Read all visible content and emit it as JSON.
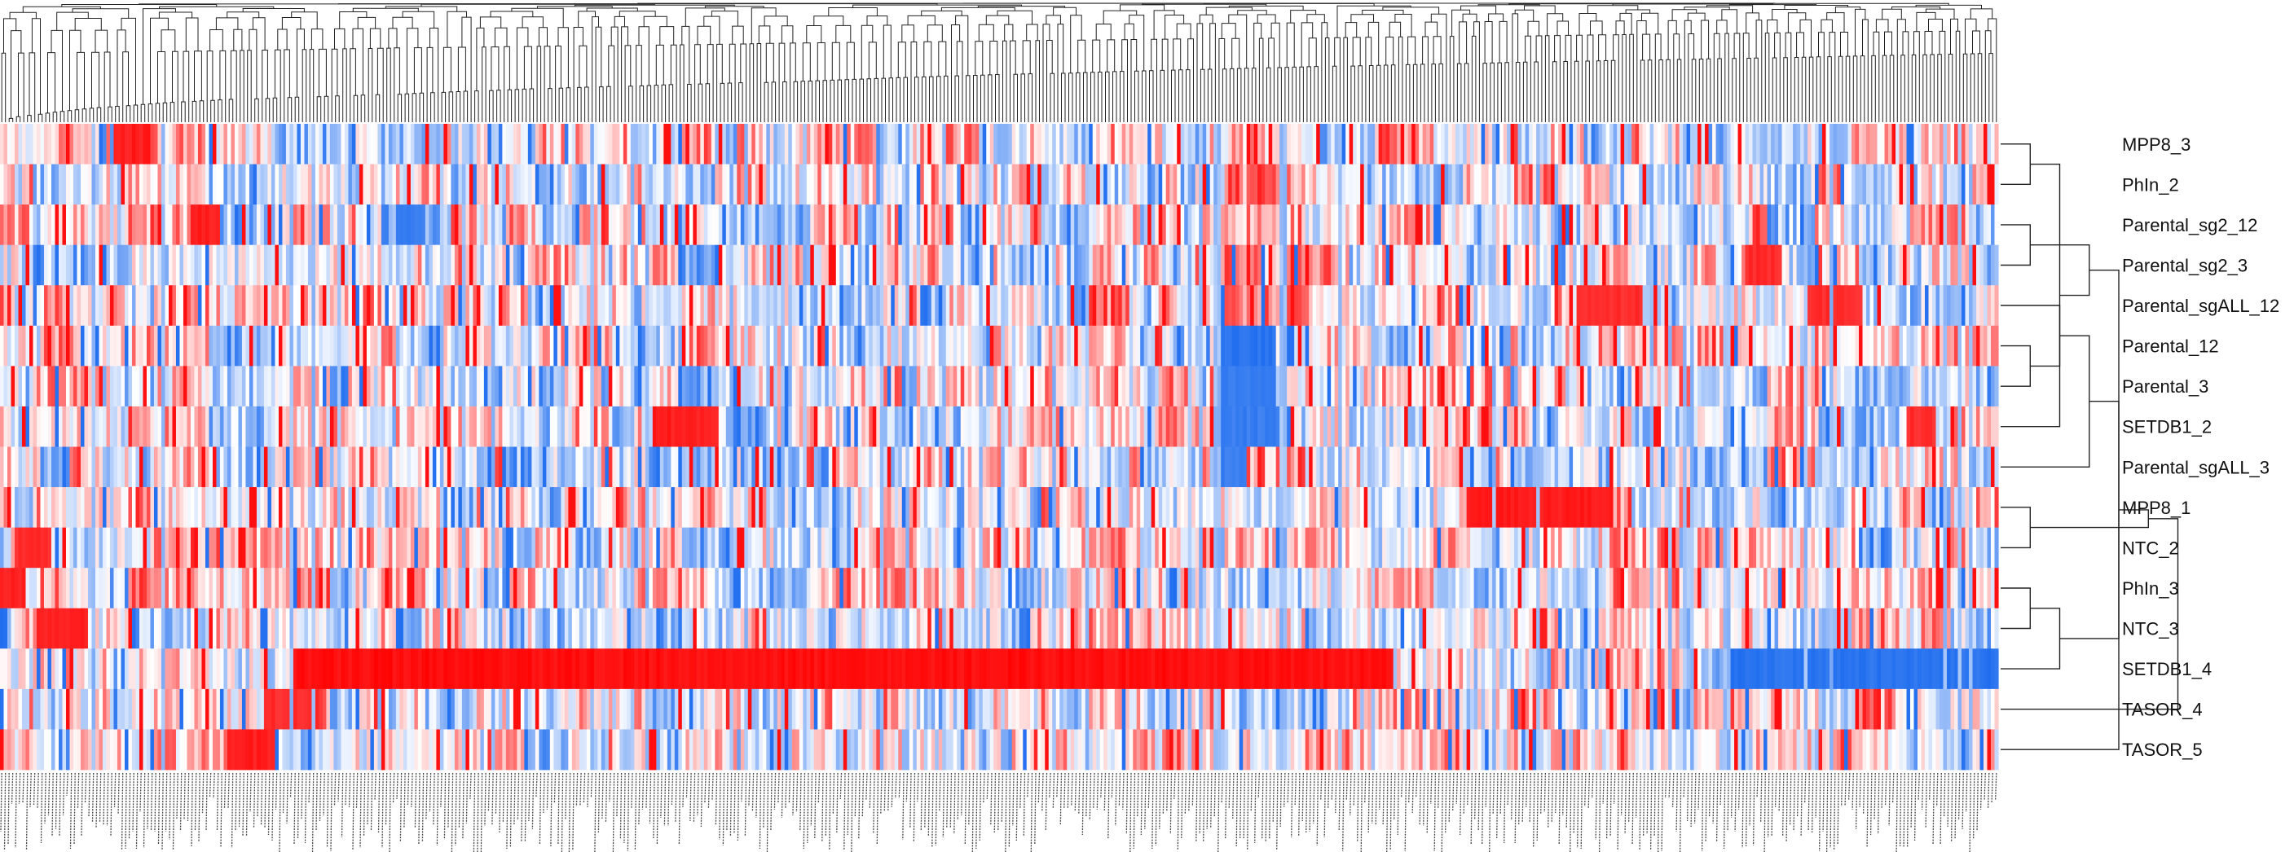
{
  "chart_data": {
    "type": "heatmap",
    "title": "",
    "xlabel": "",
    "ylabel": "",
    "grid": false,
    "legend": "none",
    "column_dendrogram": true,
    "row_dendrogram": true,
    "row_dendrogram_side": "right",
    "column_label_note": "column labels too small to read",
    "n_columns": 545,
    "value_range": [
      -1,
      1
    ],
    "colors": {
      "low": "#0f63ee",
      "mid": "#ffffff",
      "high": "#ff0000"
    },
    "rows": [
      "MPP8_3",
      "PhIn_2",
      "Parental_sg2_12",
      "Parental_sg2_3",
      "Parental_sgALL_12",
      "Parental_12",
      "Parental_3",
      "SETDB1_2",
      "Parental_sgALL_3",
      "MPP8_1",
      "NTC_2",
      "PhIn_3",
      "NTC_3",
      "SETDB1_4",
      "TASOR_4",
      "TASOR_5"
    ],
    "row_tree": [
      [
        0,
        1
      ],
      [
        2,
        3
      ],
      [
        5,
        6
      ],
      [
        16,
        7
      ],
      [
        4,
        18
      ],
      [
        17,
        19
      ],
      [
        8,
        20
      ],
      [
        15,
        21
      ],
      [
        9,
        10
      ],
      [
        11,
        12
      ],
      [
        23,
        24
      ],
      [
        25,
        13
      ],
      [
        14,
        26
      ],
      [
        22,
        27
      ]
    ],
    "strong_bands": [
      {
        "row": 13,
        "from": 80,
        "to": 380,
        "level": 0.95
      },
      {
        "row": 13,
        "from": 470,
        "to": 545,
        "level": -0.9
      },
      {
        "row": 9,
        "from": 400,
        "to": 440,
        "level": 0.9
      },
      {
        "row": 7,
        "from": 178,
        "to": 196,
        "level": 0.9
      },
      {
        "row": 0,
        "from": 31,
        "to": 41,
        "level": 0.9
      },
      {
        "row": 2,
        "from": 52,
        "to": 60,
        "level": 0.9
      },
      {
        "row": 15,
        "from": 62,
        "to": 74,
        "level": 0.9
      },
      {
        "row": 14,
        "from": 72,
        "to": 87,
        "level": 0.85
      },
      {
        "row": 11,
        "from": 0,
        "to": 7,
        "level": 0.9
      },
      {
        "row": 12,
        "from": 10,
        "to": 24,
        "level": 0.9
      },
      {
        "row": 10,
        "from": 4,
        "to": 14,
        "level": 0.85
      },
      {
        "row": 5,
        "from": 332,
        "to": 348,
        "level": -0.9
      },
      {
        "row": 6,
        "from": 332,
        "to": 348,
        "level": -0.85
      },
      {
        "row": 7,
        "from": 332,
        "to": 352,
        "level": -0.85
      },
      {
        "row": 8,
        "from": 332,
        "to": 340,
        "level": -0.85
      },
      {
        "row": 2,
        "from": 108,
        "to": 116,
        "level": -0.85
      },
      {
        "row": 4,
        "from": 430,
        "to": 448,
        "level": 0.85
      },
      {
        "row": 4,
        "from": 492,
        "to": 508,
        "level": 0.85
      },
      {
        "row": 3,
        "from": 476,
        "to": 486,
        "level": 0.85
      },
      {
        "row": 7,
        "from": 520,
        "to": 528,
        "level": 0.85
      }
    ]
  }
}
